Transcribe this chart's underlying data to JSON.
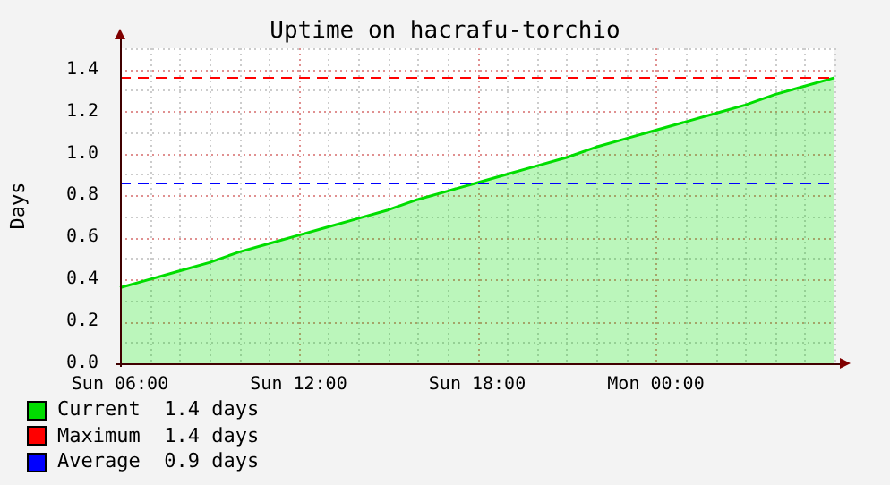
{
  "chart_data": {
    "type": "area",
    "title": "Uptime on hacrafu-torchio",
    "ylabel": "Days",
    "categories": [
      "Sun 06:00",
      null,
      null,
      null,
      null,
      null,
      "Sun 12:00",
      null,
      null,
      null,
      null,
      null,
      "Sun 18:00",
      null,
      null,
      null,
      null,
      null,
      "Mon 00:00",
      null,
      null,
      null,
      null,
      null,
      null
    ],
    "series": [
      {
        "name": "Current  1.4 days",
        "color": "#00dd00",
        "values": [
          0.36,
          0.4,
          0.44,
          0.48,
          0.53,
          0.57,
          0.61,
          0.65,
          0.69,
          0.73,
          0.78,
          0.82,
          0.86,
          0.9,
          0.94,
          0.98,
          1.03,
          1.07,
          1.11,
          1.15,
          1.19,
          1.23,
          1.28,
          1.32,
          1.36
        ]
      }
    ],
    "ylim": [
      0,
      1.5
    ],
    "yticks": [
      {
        "value": 0,
        "label": "0.0"
      },
      {
        "value": 0.2,
        "label": "0.2"
      },
      {
        "value": 0.4,
        "label": "0.4"
      },
      {
        "value": 0.6,
        "label": "0.6"
      },
      {
        "value": 0.8,
        "label": "0.8"
      },
      {
        "value": 1,
        "label": "1.0"
      },
      {
        "value": 1.2,
        "label": "1.2"
      },
      {
        "value": 1.4,
        "label": "1.4"
      }
    ],
    "ref_lines": [
      {
        "axis": "y",
        "value": 1.36,
        "label": "Maximum  1.4 days",
        "color": "#ff0000",
        "line_style": "dashed"
      },
      {
        "axis": "y",
        "value": 0.86,
        "label": "Average  0.9 days",
        "color": "#0000ff",
        "line_style": "dashed"
      }
    ],
    "grid": true,
    "legend": "bottom"
  }
}
